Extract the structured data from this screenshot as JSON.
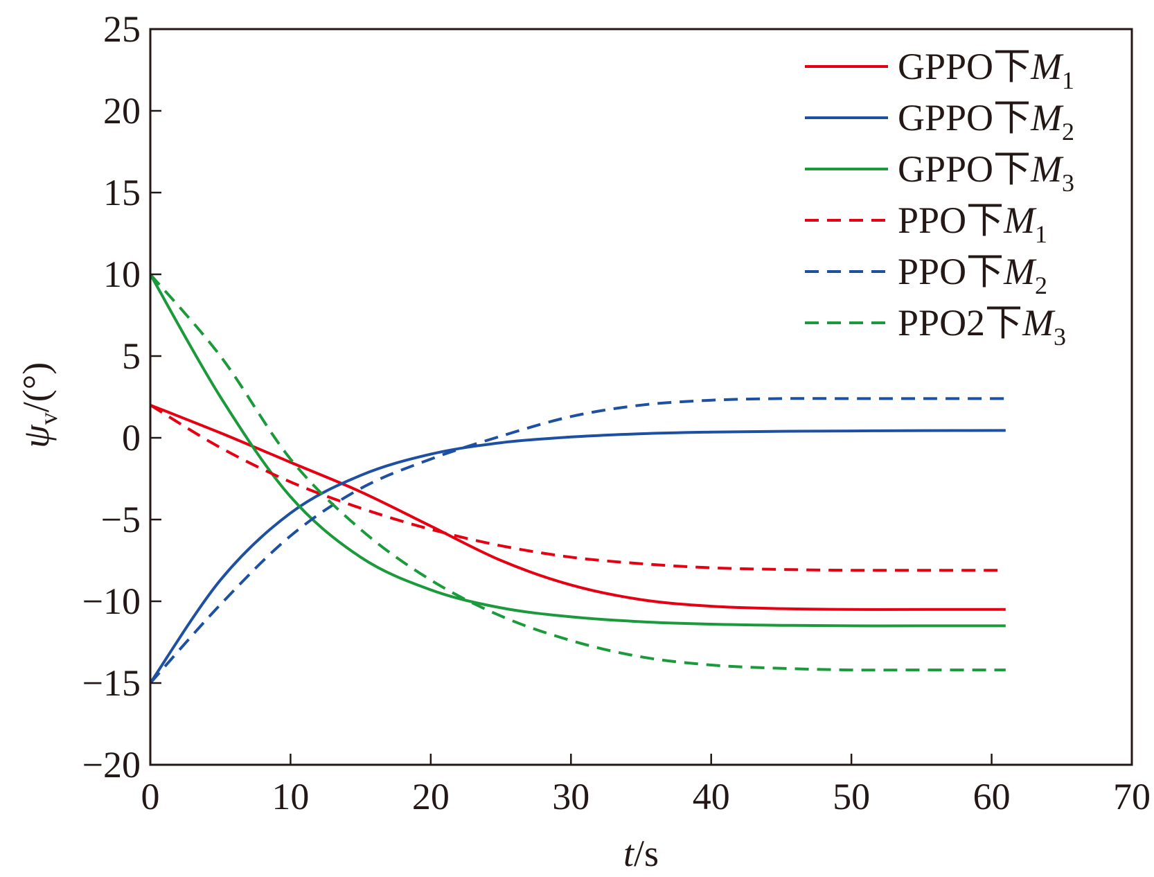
{
  "chart_data": {
    "type": "line",
    "xlabel": {
      "var": "t",
      "unit": "/s"
    },
    "ylabel": {
      "var": "ψ",
      "sub": "v",
      "unit": "/(°)"
    },
    "xlim": [
      0,
      70
    ],
    "ylim": [
      -20,
      25
    ],
    "xticks": [
      0,
      10,
      20,
      30,
      40,
      50,
      60,
      70
    ],
    "yticks": [
      -20,
      -15,
      -10,
      -5,
      0,
      5,
      10,
      15,
      20,
      25
    ],
    "ytick_labels": [
      "−20",
      "−15",
      "−10",
      "−5",
      "0",
      "5",
      "10",
      "15",
      "20",
      "25"
    ],
    "grid": false,
    "legend_position": "top-right",
    "series": [
      {
        "name": "GPPO下M1",
        "legend": {
          "prefix": "GPPO下",
          "var": "M",
          "sub": "1"
        },
        "color": "#e60012",
        "dash": false,
        "x": [
          0,
          5,
          10,
          15,
          20,
          25,
          30,
          35,
          40,
          45,
          50,
          55,
          61
        ],
        "y": [
          2,
          0.3,
          -1.5,
          -3.3,
          -5.4,
          -7.5,
          -9.0,
          -9.9,
          -10.3,
          -10.45,
          -10.5,
          -10.5,
          -10.5
        ]
      },
      {
        "name": "GPPO下M2",
        "legend": {
          "prefix": "GPPO下",
          "var": "M",
          "sub": "2"
        },
        "color": "#1d4fa3",
        "dash": false,
        "x": [
          0,
          5,
          10,
          15,
          20,
          25,
          30,
          35,
          40,
          45,
          50,
          55,
          61
        ],
        "y": [
          -15,
          -8.7,
          -4.6,
          -2.3,
          -1.0,
          -0.3,
          0.05,
          0.25,
          0.35,
          0.4,
          0.42,
          0.44,
          0.45
        ]
      },
      {
        "name": "GPPO下M3",
        "legend": {
          "prefix": "GPPO下",
          "var": "M",
          "sub": "3"
        },
        "color": "#1a9a3a",
        "dash": false,
        "x": [
          0,
          5,
          10,
          15,
          20,
          25,
          30,
          35,
          40,
          45,
          50,
          55,
          61
        ],
        "y": [
          10,
          2.5,
          -3.6,
          -7.3,
          -9.3,
          -10.4,
          -10.95,
          -11.25,
          -11.4,
          -11.47,
          -11.5,
          -11.5,
          -11.5
        ]
      },
      {
        "name": "PPO下M1",
        "legend": {
          "prefix": "PPO下",
          "var": "M",
          "sub": "1"
        },
        "color": "#e60012",
        "dash": true,
        "x": [
          0,
          5,
          10,
          15,
          20,
          25,
          30,
          35,
          40,
          45,
          50,
          55,
          61
        ],
        "y": [
          2,
          -0.6,
          -2.7,
          -4.3,
          -5.6,
          -6.6,
          -7.3,
          -7.7,
          -7.95,
          -8.05,
          -8.1,
          -8.1,
          -8.1
        ]
      },
      {
        "name": "PPO下M2",
        "legend": {
          "prefix": "PPO下",
          "var": "M",
          "sub": "2"
        },
        "color": "#1d4fa3",
        "dash": true,
        "x": [
          0,
          5,
          10,
          15,
          20,
          25,
          30,
          35,
          40,
          45,
          50,
          55,
          61
        ],
        "y": [
          -15,
          -10.2,
          -6.0,
          -3.1,
          -1.3,
          0.1,
          1.3,
          2.0,
          2.3,
          2.4,
          2.4,
          2.4,
          2.4
        ]
      },
      {
        "name": "PPO2下M3",
        "legend": {
          "prefix": "PPO2下",
          "var": "M",
          "sub": "3"
        },
        "color": "#1a9a3a",
        "dash": true,
        "x": [
          0,
          5,
          10,
          15,
          20,
          25,
          30,
          35,
          40,
          45,
          50,
          55,
          61
        ],
        "y": [
          10,
          5.0,
          -1.3,
          -5.6,
          -8.7,
          -10.9,
          -12.4,
          -13.4,
          -13.9,
          -14.1,
          -14.2,
          -14.2,
          -14.2
        ]
      }
    ]
  }
}
